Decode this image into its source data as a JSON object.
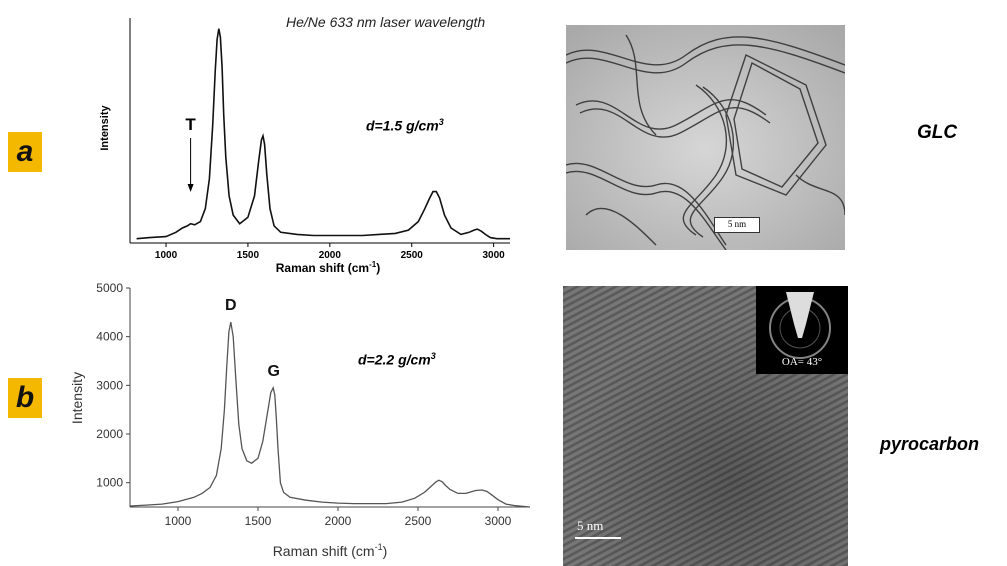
{
  "caption": "He/Ne 633 nm laser wavelength",
  "panels": [
    {
      "label": "a",
      "material": "GLC",
      "density": "d=1.5 g/cm",
      "density_sup": "3",
      "scale_bar": "5 nm"
    },
    {
      "label": "b",
      "material": "pyrocarbon",
      "density": "d=2.2 g/cm",
      "density_sup": "3",
      "scale_bar": "5 nm",
      "inset_label": "OA= 43°"
    }
  ],
  "chart_data": [
    {
      "type": "line",
      "title": "",
      "xlabel": "Raman shift (cm",
      "xlabel_sup": "-1",
      "xlabel_close": ")",
      "ylabel": "Intensity",
      "xlim": [
        780,
        3100
      ],
      "ylim": [
        0,
        1.05
      ],
      "xticks": [
        1000,
        1500,
        2000,
        2500,
        3000
      ],
      "grid": false,
      "y_tick_labels": false,
      "series": [
        {
          "x": [
            820,
            900,
            1000,
            1060,
            1100,
            1130,
            1150,
            1175,
            1210,
            1240,
            1265,
            1285,
            1300,
            1312,
            1322,
            1332,
            1342,
            1352,
            1365,
            1385,
            1410,
            1450,
            1500,
            1540,
            1565,
            1582,
            1592,
            1602,
            1615,
            1635,
            1660,
            1700,
            1800,
            1900,
            2000,
            2100,
            2200,
            2300,
            2400,
            2480,
            2540,
            2580,
            2610,
            2630,
            2650,
            2670,
            2700,
            2740,
            2800,
            2850,
            2880,
            2900,
            2925,
            2950,
            2980,
            3020,
            3060,
            3100
          ],
          "y": [
            0.02,
            0.025,
            0.03,
            0.05,
            0.07,
            0.08,
            0.09,
            0.085,
            0.1,
            0.16,
            0.3,
            0.55,
            0.8,
            0.95,
            1.0,
            0.96,
            0.82,
            0.6,
            0.4,
            0.22,
            0.13,
            0.09,
            0.12,
            0.22,
            0.38,
            0.48,
            0.5,
            0.46,
            0.32,
            0.16,
            0.08,
            0.05,
            0.04,
            0.035,
            0.035,
            0.035,
            0.035,
            0.04,
            0.045,
            0.06,
            0.1,
            0.16,
            0.21,
            0.24,
            0.24,
            0.21,
            0.13,
            0.07,
            0.04,
            0.05,
            0.06,
            0.065,
            0.055,
            0.04,
            0.025,
            0.02,
            0.02,
            0.02
          ]
        }
      ],
      "annotations": [
        {
          "text": "T",
          "x": 1150
        }
      ]
    },
    {
      "type": "line",
      "title": "",
      "xlabel": "Raman shift (cm",
      "xlabel_sup": "-1",
      "xlabel_close": ")",
      "ylabel": "Intensity",
      "xlim": [
        700,
        3200
      ],
      "ylim": [
        500,
        5000
      ],
      "xticks": [
        1000,
        1500,
        2000,
        2500,
        3000
      ],
      "yticks": [
        1000,
        2000,
        3000,
        4000,
        5000
      ],
      "grid": false,
      "series": [
        {
          "x": [
            700,
            800,
            900,
            1000,
            1100,
            1150,
            1200,
            1240,
            1270,
            1290,
            1305,
            1318,
            1330,
            1345,
            1360,
            1380,
            1400,
            1430,
            1460,
            1500,
            1530,
            1560,
            1580,
            1595,
            1605,
            1615,
            1625,
            1640,
            1660,
            1700,
            1800,
            1900,
            2000,
            2100,
            2200,
            2300,
            2400,
            2480,
            2540,
            2580,
            2610,
            2630,
            2650,
            2670,
            2700,
            2750,
            2800,
            2860,
            2900,
            2930,
            2960,
            3000,
            3050,
            3100,
            3200
          ],
          "y": [
            520,
            540,
            560,
            610,
            700,
            780,
            900,
            1150,
            1700,
            2500,
            3400,
            4100,
            4300,
            4000,
            3200,
            2200,
            1700,
            1450,
            1400,
            1500,
            1850,
            2450,
            2850,
            2950,
            2800,
            2300,
            1700,
            1000,
            800,
            700,
            640,
            600,
            580,
            570,
            570,
            570,
            600,
            680,
            800,
            920,
            1010,
            1050,
            1020,
            950,
            860,
            780,
            780,
            840,
            850,
            820,
            750,
            650,
            560,
            530,
            500
          ]
        }
      ],
      "annotations": [
        {
          "text": "D",
          "x": 1330
        },
        {
          "text": "G",
          "x": 1598
        }
      ]
    }
  ]
}
